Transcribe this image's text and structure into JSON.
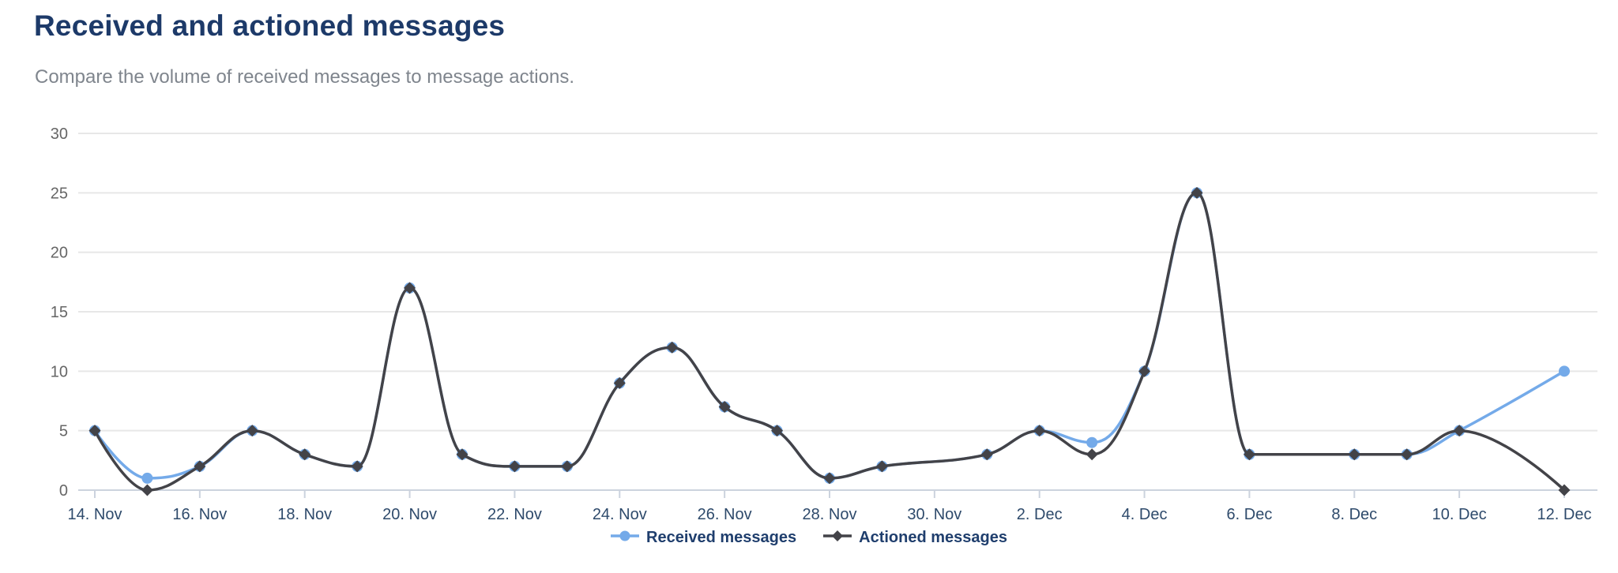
{
  "chart_data": {
    "type": "line",
    "title": "Received and actioned messages",
    "subtitle": "Compare the volume of received messages to message actions.",
    "x_axis": {
      "type": "date",
      "total_days": 29,
      "tick_interval_days": 2,
      "tick_labels": [
        "14. Nov",
        "16. Nov",
        "18. Nov",
        "20. Nov",
        "22. Nov",
        "24. Nov",
        "26. Nov",
        "28. Nov",
        "30. Nov",
        "2. Dec",
        "4. Dec",
        "6. Dec",
        "8. Dec",
        "10. Dec",
        "12. Dec"
      ]
    },
    "y_axis": {
      "min": 0,
      "max": 30,
      "tick_step": 5,
      "tick_labels": [
        "0",
        "5",
        "10",
        "15",
        "20",
        "25",
        "30"
      ]
    },
    "grid": "horizontal-only",
    "legend_position": "bottom-center",
    "series": [
      {
        "name": "Received messages",
        "color": "#74aae9",
        "marker": "circle",
        "points": [
          [
            0,
            5
          ],
          [
            1,
            1
          ],
          [
            2,
            2
          ],
          [
            3,
            5
          ],
          [
            4,
            3
          ],
          [
            5,
            2
          ],
          [
            6,
            17
          ],
          [
            7,
            3
          ],
          [
            8,
            2
          ],
          [
            9,
            2
          ],
          [
            10,
            9
          ],
          [
            11,
            12
          ],
          [
            12,
            7
          ],
          [
            13,
            5
          ],
          [
            14,
            1
          ],
          [
            15,
            2
          ],
          [
            17,
            3
          ],
          [
            18,
            5
          ],
          [
            19,
            4
          ],
          [
            20,
            10
          ],
          [
            21,
            25
          ],
          [
            22,
            3
          ],
          [
            24,
            3
          ],
          [
            25,
            3
          ],
          [
            26,
            5
          ],
          [
            28,
            10
          ]
        ]
      },
      {
        "name": "Actioned messages",
        "color": "#434348",
        "marker": "diamond",
        "points": [
          [
            0,
            5
          ],
          [
            1,
            0
          ],
          [
            2,
            2
          ],
          [
            3,
            5
          ],
          [
            4,
            3
          ],
          [
            5,
            2
          ],
          [
            6,
            17
          ],
          [
            7,
            3
          ],
          [
            8,
            2
          ],
          [
            9,
            2
          ],
          [
            10,
            9
          ],
          [
            11,
            12
          ],
          [
            12,
            7
          ],
          [
            13,
            5
          ],
          [
            14,
            1
          ],
          [
            15,
            2
          ],
          [
            17,
            3
          ],
          [
            18,
            5
          ],
          [
            19,
            3
          ],
          [
            20,
            10
          ],
          [
            21,
            25
          ],
          [
            22,
            3
          ],
          [
            24,
            3
          ],
          [
            25,
            3
          ],
          [
            26,
            5
          ],
          [
            28,
            0
          ]
        ]
      }
    ]
  }
}
